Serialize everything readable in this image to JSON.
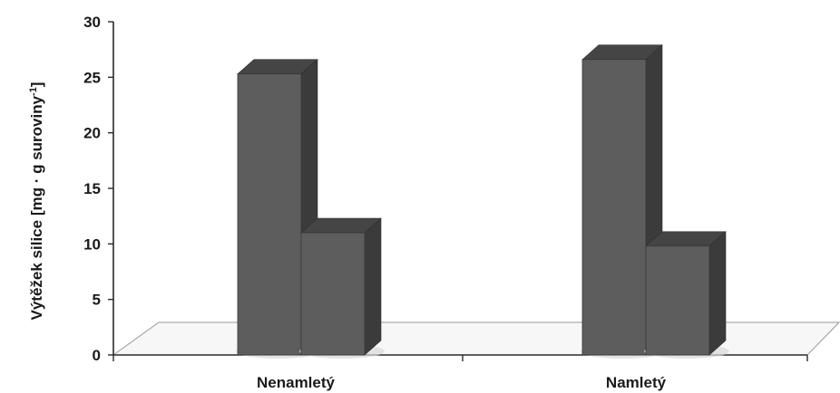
{
  "chart_data": {
    "type": "bar",
    "title": "",
    "xlabel": "",
    "ylabel": "Výtěžek silice [mg · g suroviny",
    "ylabel_superscript": "-1",
    "ylabel_suffix": "]",
    "categories": [
      "Nenamletý",
      "Namletý"
    ],
    "series": [
      {
        "values": [
          25.3,
          26.6
        ]
      },
      {
        "values": [
          11.0,
          9.8
        ]
      }
    ],
    "ylim": [
      0,
      30
    ],
    "yticks": [
      "0",
      "5",
      "10",
      "15",
      "20",
      "25",
      "30"
    ],
    "style": "3d",
    "grid": false,
    "legend": "none",
    "colors": {
      "bar_front": "#5d5d5d",
      "bar_side": "#3b3b3b",
      "bar_top": "#454545",
      "axis": "#2a2a2a",
      "floor": "#f7f7f7",
      "shadow": "#d8d8d8"
    }
  }
}
